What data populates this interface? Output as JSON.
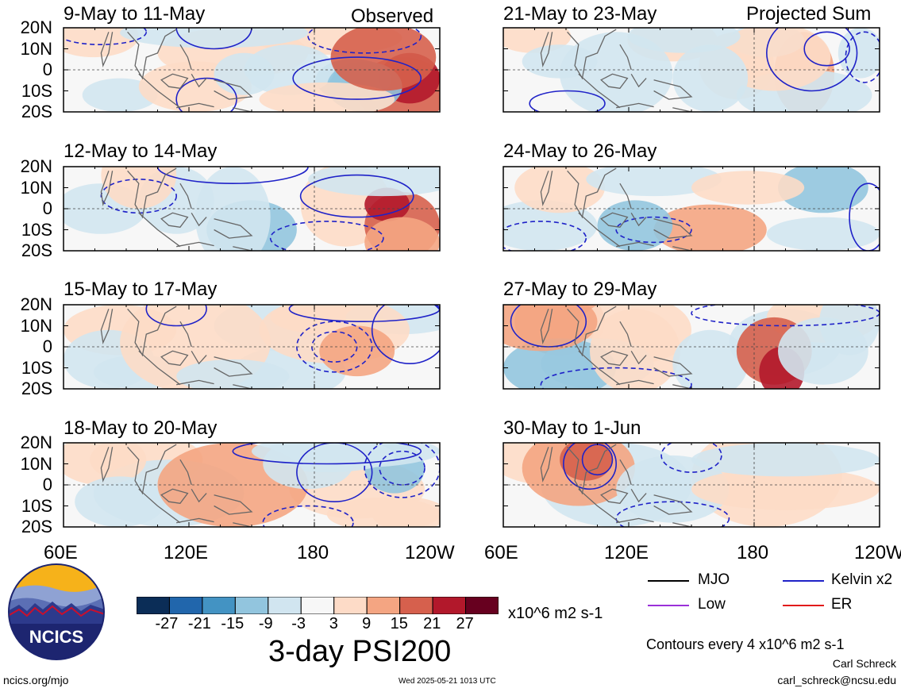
{
  "panels": {
    "observed_tag": "Observed",
    "projected_tag": "Projected Sum",
    "left": [
      {
        "title": "9-May to 11-May"
      },
      {
        "title": "12-May to 14-May"
      },
      {
        "title": "15-May to 17-May"
      },
      {
        "title": "18-May to 20-May"
      }
    ],
    "right": [
      {
        "title": "21-May to 23-May"
      },
      {
        "title": "24-May to 26-May"
      },
      {
        "title": "27-May to 29-May"
      },
      {
        "title": "30-May to 1-Jun"
      }
    ]
  },
  "axes": {
    "lat_labels": [
      "20N",
      "10N",
      "0",
      "10S",
      "20S"
    ],
    "lon_labels": [
      "60E",
      "120E",
      "180",
      "120W"
    ]
  },
  "colorbar": {
    "labels": [
      "-27",
      "-21",
      "-15",
      "-9",
      "-3",
      "3",
      "9",
      "15",
      "21",
      "27"
    ],
    "colors": [
      "#0b2d57",
      "#2166ac",
      "#4393c3",
      "#92c5de",
      "#d1e5f0",
      "#f7f7f7",
      "#fddbc7",
      "#f4a582",
      "#d6604d",
      "#b2182b",
      "#67001f"
    ],
    "units": "x10^6 m2 s-1"
  },
  "title": "3-day PSI200",
  "legend": {
    "items": [
      {
        "label": "MJO",
        "color": "#000000"
      },
      {
        "label": "Kelvin x2",
        "color": "#1f22c8"
      },
      {
        "label": "Low",
        "color": "#9b30d9"
      },
      {
        "label": "ER",
        "color": "#e11a1a"
      }
    ],
    "contour_note": "Contours every 4 x10^6 m2 s-1"
  },
  "credits": {
    "author": "Carl Schreck",
    "email": "carl_schreck@ncsu.edu",
    "url": "ncics.org/mjo",
    "timestamp": "Wed 2025-05-21 1013 UTC",
    "logo_text": "NCICS"
  }
}
